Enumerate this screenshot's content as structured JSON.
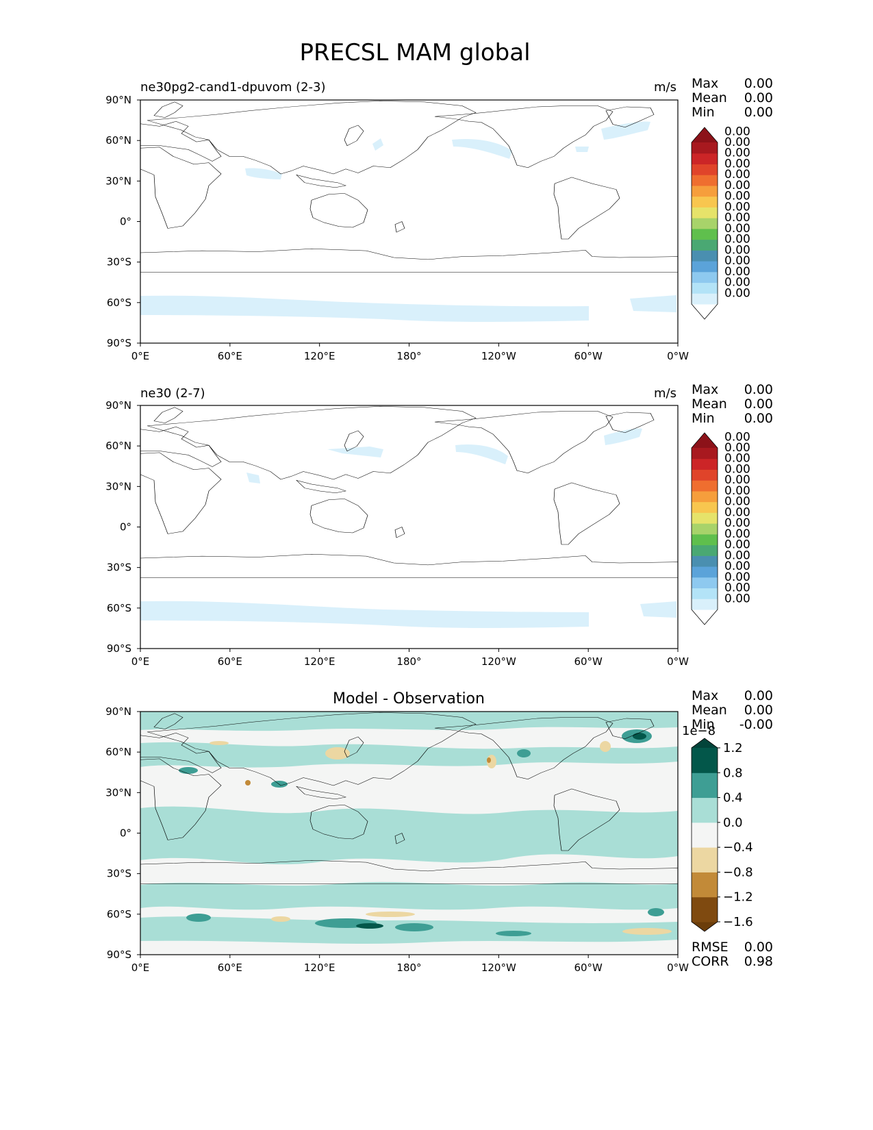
{
  "chart_data": {
    "type": "map_contour",
    "title": "PRECSL MAM global",
    "lon_ticks": [
      "0°E",
      "60°E",
      "120°E",
      "180°",
      "120°W",
      "60°W",
      "0°W"
    ],
    "lat_ticks": [
      "90°N",
      "60°N",
      "30°N",
      "0°",
      "30°S",
      "60°S",
      "90°S"
    ],
    "panels": [
      {
        "left_title": "ne30pg2-cand1-dpuvom (2-3)",
        "right_title": "m/s",
        "stats": {
          "Max": "0.00",
          "Mean": "0.00",
          "Min": "0.00"
        },
        "stat_labels": [
          "Max",
          "Mean",
          "Min"
        ],
        "colorbar": {
          "colors": [
            "#ffffff",
            "#d9f0fb",
            "#b3e3f7",
            "#8ec9ef",
            "#5ba3d9",
            "#4a8fb0",
            "#4aa873",
            "#5fbf4d",
            "#a8d36a",
            "#e6e36a",
            "#f8c64f",
            "#f69e3c",
            "#ef6e2f",
            "#e0442a",
            "#cc2527",
            "#a8191f",
            "#8c1219"
          ],
          "labels": [
            "0.00",
            "0.00",
            "0.00",
            "0.00",
            "0.00",
            "0.00",
            "0.00",
            "0.00",
            "0.00",
            "0.00",
            "0.00",
            "0.00",
            "0.00",
            "0.00",
            "0.00",
            "0.00"
          ],
          "extend": "both"
        }
      },
      {
        "left_title": "ne30 (2-7)",
        "right_title": "m/s",
        "stats": {
          "Max": "0.00",
          "Mean": "0.00",
          "Min": "0.00"
        },
        "stat_labels": [
          "Max",
          "Mean",
          "Min"
        ],
        "colorbar": {
          "colors": [
            "#ffffff",
            "#d9f0fb",
            "#b3e3f7",
            "#8ec9ef",
            "#5ba3d9",
            "#4a8fb0",
            "#4aa873",
            "#5fbf4d",
            "#a8d36a",
            "#e6e36a",
            "#f8c64f",
            "#f69e3c",
            "#ef6e2f",
            "#e0442a",
            "#cc2527",
            "#a8191f",
            "#8c1219"
          ],
          "labels": [
            "0.00",
            "0.00",
            "0.00",
            "0.00",
            "0.00",
            "0.00",
            "0.00",
            "0.00",
            "0.00",
            "0.00",
            "0.00",
            "0.00",
            "0.00",
            "0.00",
            "0.00",
            "0.00"
          ],
          "extend": "both"
        }
      },
      {
        "center_title": "Model - Observation",
        "stats": {
          "Max": "0.00",
          "Mean": "0.00",
          "Min": "-0.00"
        },
        "stat_labels": [
          "Max",
          "Mean",
          "Min"
        ],
        "extra_stats": {
          "RMSE": "0.00",
          "CORR": "0.98"
        },
        "extra_labels": [
          "RMSE",
          "CORR"
        ],
        "colorbar": {
          "offset_label": "1e−8",
          "levels": [
            -1.6,
            -1.2,
            -0.8,
            -0.4,
            0.0,
            0.4,
            0.8,
            1.2
          ],
          "labels": [
            "−1.6",
            "−1.2",
            "−0.8",
            "−0.4",
            "0.0",
            "0.4",
            "0.8",
            "1.2"
          ],
          "colors": [
            "#6b3d0a",
            "#7f4a10",
            "#c28a38",
            "#ecd7a2",
            "#f4f5f4",
            "#a9ded6",
            "#3e9e94",
            "#03574a",
            "#02443a"
          ],
          "extend": "both"
        }
      }
    ],
    "colors": {
      "ocean_band": "#d9f0fb",
      "diff_light": "#a9ded6",
      "diff_bg": "#f4f5f4"
    }
  }
}
